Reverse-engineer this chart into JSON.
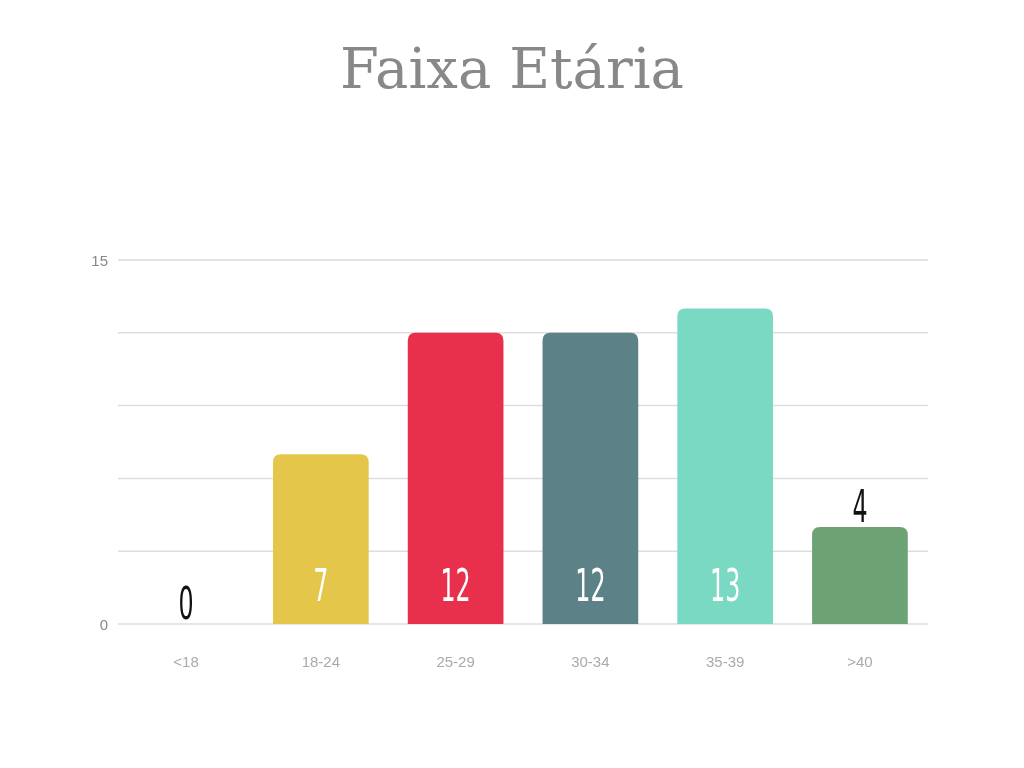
{
  "chart_data": {
    "type": "bar",
    "title": "Faixa Etária",
    "categories": [
      "<18",
      "18-24",
      "25-29",
      "30-34",
      "35-39",
      ">40"
    ],
    "values": [
      0,
      7,
      12,
      12,
      13,
      4
    ],
    "colors": [
      "#e4c64b",
      "#e4c64b",
      "#e8304c",
      "#5c8288",
      "#7ad9c2",
      "#6da275"
    ],
    "ylim": [
      0,
      15
    ],
    "yticks": [
      0,
      {
        "value": 3,
        "label": null
      },
      {
        "value": 6,
        "label": null
      },
      {
        "value": 9,
        "label": null
      },
      {
        "value": 12,
        "label": null
      },
      15
    ],
    "grid": "y",
    "data_labels": true
  }
}
